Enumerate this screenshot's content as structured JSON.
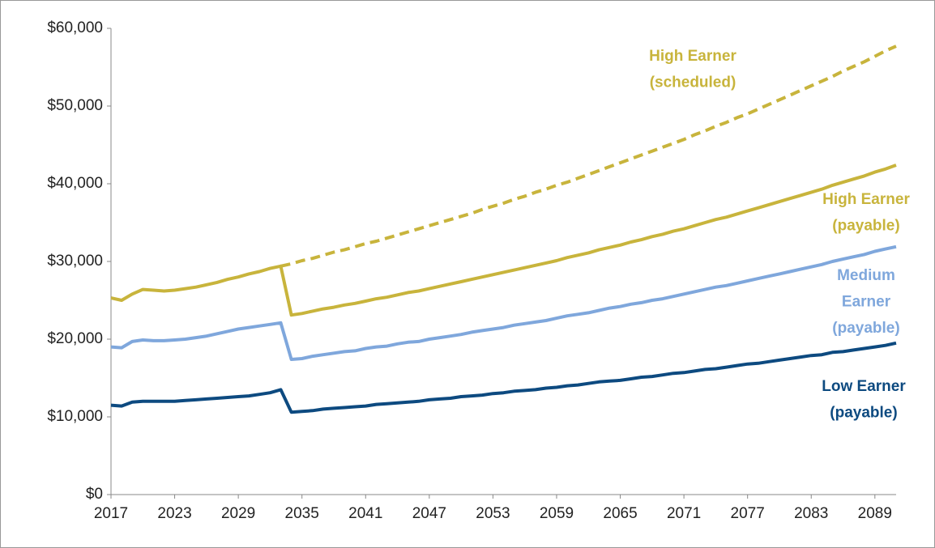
{
  "chart_data": {
    "type": "line",
    "x": [
      2017,
      2018,
      2019,
      2020,
      2021,
      2022,
      2023,
      2024,
      2025,
      2026,
      2027,
      2028,
      2029,
      2030,
      2031,
      2032,
      2033,
      2034,
      2035,
      2036,
      2037,
      2038,
      2039,
      2040,
      2041,
      2042,
      2043,
      2044,
      2045,
      2046,
      2047,
      2048,
      2049,
      2050,
      2051,
      2052,
      2053,
      2054,
      2055,
      2056,
      2057,
      2058,
      2059,
      2060,
      2061,
      2062,
      2063,
      2064,
      2065,
      2066,
      2067,
      2068,
      2069,
      2070,
      2071,
      2072,
      2073,
      2074,
      2075,
      2076,
      2077,
      2078,
      2079,
      2080,
      2081,
      2082,
      2083,
      2084,
      2085,
      2086,
      2087,
      2088,
      2089,
      2090,
      2091
    ],
    "xlim": [
      2017,
      2091
    ],
    "xticks": [
      2017,
      2023,
      2029,
      2035,
      2041,
      2047,
      2053,
      2059,
      2065,
      2071,
      2077,
      2083,
      2089
    ],
    "ylim": [
      0,
      60000
    ],
    "yticks": [
      {
        "value": 0,
        "label": "$0"
      },
      {
        "value": 10000,
        "label": "$10,000"
      },
      {
        "value": 20000,
        "label": "$20,000"
      },
      {
        "value": 30000,
        "label": "$30,000"
      },
      {
        "value": 40000,
        "label": "$40,000"
      },
      {
        "value": 50000,
        "label": "$50,000"
      },
      {
        "value": 60000,
        "label": "$60,000"
      }
    ],
    "grid": false,
    "series": [
      {
        "labels": [
          "High Earner",
          "(scheduled)"
        ],
        "color": "#c8b43c",
        "dashed": true,
        "values": [
          null,
          null,
          null,
          null,
          null,
          null,
          null,
          null,
          null,
          null,
          null,
          null,
          null,
          null,
          null,
          null,
          29400,
          29700,
          30100,
          30400,
          30800,
          31200,
          31500,
          31900,
          32300,
          32600,
          33000,
          33400,
          33800,
          34200,
          34600,
          35000,
          35400,
          35800,
          36200,
          36700,
          37100,
          37500,
          38000,
          38400,
          38900,
          39300,
          39800,
          40200,
          40700,
          41200,
          41700,
          42200,
          42700,
          43200,
          43700,
          44200,
          44700,
          45200,
          45700,
          46300,
          46800,
          47400,
          47900,
          48500,
          49000,
          49600,
          50200,
          50800,
          51400,
          52000,
          52600,
          53200,
          53800,
          54500,
          55100,
          55700,
          56400,
          57100,
          57700
        ]
      },
      {
        "labels": [
          "High Earner",
          "(payable)"
        ],
        "color": "#c8b43c",
        "dashed": false,
        "values": [
          25300,
          25000,
          25800,
          26400,
          26300,
          26200,
          26300,
          26500,
          26700,
          27000,
          27300,
          27700,
          28000,
          28400,
          28700,
          29100,
          29400,
          23100,
          23300,
          23600,
          23900,
          24100,
          24400,
          24600,
          24900,
          25200,
          25400,
          25700,
          26000,
          26200,
          26500,
          26800,
          27100,
          27400,
          27700,
          28000,
          28300,
          28600,
          28900,
          29200,
          29500,
          29800,
          30100,
          30500,
          30800,
          31100,
          31500,
          31800,
          32100,
          32500,
          32800,
          33200,
          33500,
          33900,
          34200,
          34600,
          35000,
          35400,
          35700,
          36100,
          36500,
          36900,
          37300,
          37700,
          38100,
          38500,
          38900,
          39300,
          39800,
          40200,
          40600,
          41000,
          41500,
          41900,
          42400
        ]
      },
      {
        "labels": [
          "Medium",
          "Earner",
          "(payable)"
        ],
        "color": "#7fa7dc",
        "dashed": false,
        "values": [
          19000,
          18900,
          19700,
          19900,
          19800,
          19800,
          19900,
          20000,
          20200,
          20400,
          20700,
          21000,
          21300,
          21500,
          21700,
          21900,
          22100,
          17400,
          17500,
          17800,
          18000,
          18200,
          18400,
          18500,
          18800,
          19000,
          19100,
          19400,
          19600,
          19700,
          20000,
          20200,
          20400,
          20600,
          20900,
          21100,
          21300,
          21500,
          21800,
          22000,
          22200,
          22400,
          22700,
          23000,
          23200,
          23400,
          23700,
          24000,
          24200,
          24500,
          24700,
          25000,
          25200,
          25500,
          25800,
          26100,
          26400,
          26700,
          26900,
          27200,
          27500,
          27800,
          28100,
          28400,
          28700,
          29000,
          29300,
          29600,
          30000,
          30300,
          30600,
          30900,
          31300,
          31600,
          31900
        ]
      },
      {
        "labels": [
          "Low Earner",
          "(payable)"
        ],
        "color": "#0d4a80",
        "dashed": false,
        "values": [
          11500,
          11400,
          11900,
          12000,
          12000,
          12000,
          12000,
          12100,
          12200,
          12300,
          12400,
          12500,
          12600,
          12700,
          12900,
          13100,
          13500,
          10600,
          10700,
          10800,
          11000,
          11100,
          11200,
          11300,
          11400,
          11600,
          11700,
          11800,
          11900,
          12000,
          12200,
          12300,
          12400,
          12600,
          12700,
          12800,
          13000,
          13100,
          13300,
          13400,
          13500,
          13700,
          13800,
          14000,
          14100,
          14300,
          14500,
          14600,
          14700,
          14900,
          15100,
          15200,
          15400,
          15600,
          15700,
          15900,
          16100,
          16200,
          16400,
          16600,
          16800,
          16900,
          17100,
          17300,
          17500,
          17700,
          17900,
          18000,
          18300,
          18400,
          18600,
          18800,
          19000,
          19200,
          19500
        ]
      }
    ]
  }
}
